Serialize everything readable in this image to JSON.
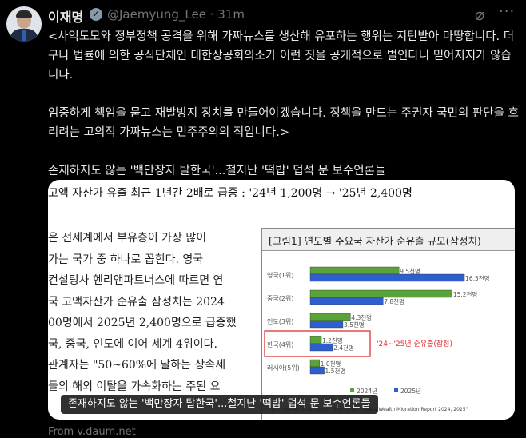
{
  "author": {
    "name": "이재명",
    "handle": "@Jaemyung_Lee",
    "time": "31m",
    "verified": true
  },
  "icons": {
    "grok": "grok-slash-icon",
    "more": "more-dots-icon"
  },
  "tweet": {
    "text": "<사익도모와 정부정책 공격을 위해 가짜뉴스를 생산해 유포하는 행위는 지탄받아 마땅합니다. 더구나 법률에 의한 공식단체인 대한상공회의소가 이런 짓을 공개적으로 벌인다니 믿어지지가 않습니다.\n\n엄중하게 책임을 묻고 재발방지 장치를 만들어야겠습니다. 정책을 만드는 주권자 국민의 판단을 흐리려는 고의적 가짜뉴스는 민주주의의 적입니다.>\n\n존재하지도 않는 '백만장자 탈한국'...철지난 '떡밥' 덥석 문 보수언론들"
  },
  "card": {
    "image_title": "고액 자산가 유출 최근 1년간 2배로 급증 : '24년 1,200명 → '25년 2,400명",
    "article_lines": [
      "은 전세계에서 부유층이 가장 많이",
      "가는 국가 중 하나로 꼽힌다. 영국",
      "컨설팅사 헨리앤파트너스에 따르면 연",
      "국 고액자산가 순유출 잠정치는 2024",
      "00명에서 2025년 2,400명으로 급증했",
      "국, 중국, 인도에 이어 세계 4위이다.",
      "관계자는 \"50~60%에 달하는 상속세",
      "들의 해외 이탈을 가속화하는 주된 요"
    ],
    "caption": "존재하지도 않는 '백만장자 탈한국'...철지난 '떡밥' 덥석 문 보수언론들",
    "source": "From v.daum.net"
  },
  "chart_data": {
    "type": "bar",
    "orientation": "horizontal",
    "title": "[그림1] 연도별 주요국 자산가 순유출 규모(잠정치)",
    "categories": [
      "영국(1위)",
      "중국(2위)",
      "인도(3위)",
      "한국(4위)",
      "러시아(5위)"
    ],
    "series": [
      {
        "name": "2024년",
        "color": "#5aa339",
        "values": [
          9.5,
          15.2,
          4.3,
          1.2,
          1.0
        ],
        "labels": [
          "9.5천명",
          "15.2천명",
          "4.3천명",
          "1.2천명",
          "1.0천명"
        ]
      },
      {
        "name": "2025년",
        "color": "#2f5fcf",
        "values": [
          16.5,
          7.8,
          3.5,
          2.4,
          1.5
        ],
        "labels": [
          "16.5천명",
          "7.8천명",
          "3.5천명",
          "2.4천명",
          "1.5천명"
        ]
      }
    ],
    "annotation": "'24~'25년 순유출(잠정)",
    "highlight_color": "#e03030",
    "source_note": "* 출처: Henley & Partners, \"The Henley Private Wealth Migration Report 2024, 2025\"",
    "grid": false,
    "legend": "bottom"
  }
}
